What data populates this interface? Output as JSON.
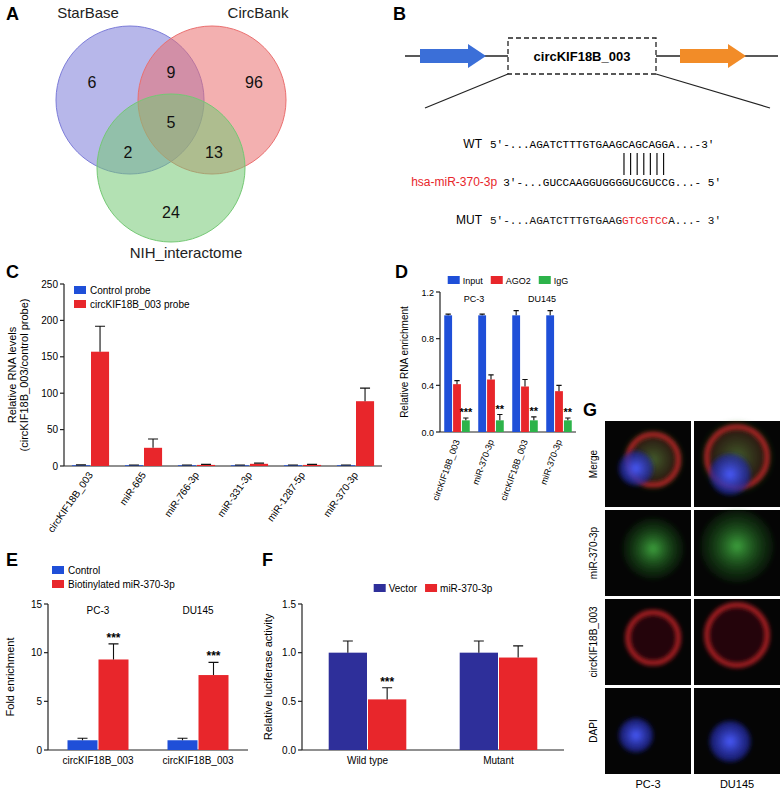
{
  "chart_data": [
    {
      "panel": "A",
      "type": "venn",
      "sets": [
        {
          "name": "StarBase",
          "color": "#7b7bd8"
        },
        {
          "name": "CircBank",
          "color": "#ea6f6f"
        },
        {
          "name": "NIH_interactome",
          "color": "#74c874"
        }
      ],
      "regions": [
        {
          "sets": [
            0
          ],
          "value": 6
        },
        {
          "sets": [
            1
          ],
          "value": 96
        },
        {
          "sets": [
            2
          ],
          "value": 24
        },
        {
          "sets": [
            0,
            1
          ],
          "value": 9
        },
        {
          "sets": [
            0,
            2
          ],
          "value": 2
        },
        {
          "sets": [
            1,
            2
          ],
          "value": 13
        },
        {
          "sets": [
            0,
            1,
            2
          ],
          "value": 5
        }
      ]
    },
    {
      "panel": "C",
      "type": "bar",
      "y_label": [
        "Relative RNA levels",
        "(circKIF18B_003/control probe)"
      ],
      "categories": [
        "circKIF18B_003",
        "miR-665",
        "miR-766-3p",
        "miR-331-3p",
        "miR-1287-5p",
        "miR-370-3p"
      ],
      "series": [
        {
          "name": "Control probe",
          "color": "#1f4fd8",
          "values": [
            1,
            1,
            1,
            1,
            1,
            1
          ],
          "errors": [
            0.5,
            0.3,
            0.3,
            0.3,
            0.3,
            0.4
          ]
        },
        {
          "name": "circKIF18B_003 probe",
          "color": "#e8262b",
          "values": [
            157,
            25,
            1.5,
            3,
            1.5,
            89
          ],
          "errors": [
            35,
            12,
            0.8,
            1,
            0.7,
            18
          ]
        }
      ],
      "ylim": [
        0,
        250
      ],
      "yticks": [
        0,
        50,
        100,
        150,
        200,
        250
      ],
      "legend": "top-left"
    },
    {
      "panel": "D",
      "type": "bar",
      "y_label": "Relative RNA enrichment",
      "groups": [
        "PC-3",
        "DU145"
      ],
      "categories": [
        "circKIF18B_003",
        "miR-370-3p",
        "circKIF18B_003",
        "miR-370-3p"
      ],
      "series": [
        {
          "name": "Input",
          "color": "#1f4fd8",
          "values": [
            1,
            1,
            1,
            1
          ],
          "errors": [
            0.01,
            0.01,
            0.04,
            0.04
          ]
        },
        {
          "name": "AGO2",
          "color": "#e8262b",
          "values": [
            0.41,
            0.45,
            0.39,
            0.35
          ],
          "errors": [
            0.03,
            0.04,
            0.06,
            0.05
          ]
        },
        {
          "name": "IgG",
          "color": "#2db34a",
          "values": [
            0.1,
            0.1,
            0.1,
            0.1
          ],
          "errors": [
            0.02,
            0.05,
            0.03,
            0.02
          ],
          "significance": [
            "***",
            "**",
            "**",
            "**"
          ]
        }
      ],
      "ylim": [
        0,
        1.2
      ],
      "yticks": [
        {
          "value": 0,
          "label": "0.0"
        },
        {
          "value": 0.4,
          "label": "0.4"
        },
        {
          "value": 0.8,
          "label": "0.8"
        },
        {
          "value": 1.2,
          "label": "1.2"
        }
      ],
      "legend": "top"
    },
    {
      "panel": "E",
      "type": "bar",
      "y_label": "Fold enrichment",
      "groups": [
        "PC-3",
        "DU145"
      ],
      "categories": [
        "circKIF18B_003",
        "circKIF18B_003"
      ],
      "series": [
        {
          "name": "Control",
          "color": "#1f4fd8",
          "values": [
            1,
            1
          ],
          "errors": [
            0.2,
            0.2
          ]
        },
        {
          "name": "Biotinylated miR-370-3p",
          "color": "#e8262b",
          "values": [
            9.3,
            7.7
          ],
          "errors": [
            1.6,
            1.3
          ],
          "significance": [
            "***",
            "***"
          ]
        }
      ],
      "ylim": [
        0,
        15
      ],
      "yticks": [
        0,
        5,
        10,
        15
      ],
      "legend": "top-left"
    },
    {
      "panel": "F",
      "type": "bar",
      "y_label": "Relative luciferase activity",
      "categories": [
        "Wild type",
        "Mutant"
      ],
      "series": [
        {
          "name": "Vector",
          "color": "#2e2f9a",
          "values": [
            1,
            1
          ],
          "errors": [
            0.12,
            0.12
          ]
        },
        {
          "name": "miR-370-3p",
          "color": "#e8262b",
          "values": [
            0.52,
            0.95
          ],
          "errors": [
            0.12,
            0.12
          ],
          "significance": [
            "***",
            null
          ]
        }
      ],
      "ylim": [
        0,
        1.5
      ],
      "yticks": [
        {
          "value": 0,
          "label": "0.0"
        },
        {
          "value": 0.5,
          "label": "0.5"
        },
        {
          "value": 1,
          "label": "1.0"
        },
        {
          "value": 1.5,
          "label": "1.5"
        }
      ],
      "legend": "top"
    }
  ],
  "diagram": {
    "panel": "B",
    "circ_name": "circKIF18B_003",
    "wt": {
      "label": "WT",
      "sequence": "5′-...AGATCTTTGTGAAGCAGCAGGA...-3′"
    },
    "mirna": {
      "label": "hsa-miR-370-3p",
      "sequence": "3′-...GUCCAAGGUGGGGUCGUCCG...- 5′"
    },
    "mut": {
      "label": "MUT",
      "segments": [
        "5′-...AGATCTTTGTGAAG",
        "GTCGTCC",
        "A...- 3′"
      ]
    }
  },
  "images": {
    "panel": "G",
    "rows": [
      "Merge",
      "miR-370-3p",
      "circKIF18B_003",
      "DAPI"
    ],
    "columns": [
      "PC-3",
      "DU145"
    ]
  }
}
